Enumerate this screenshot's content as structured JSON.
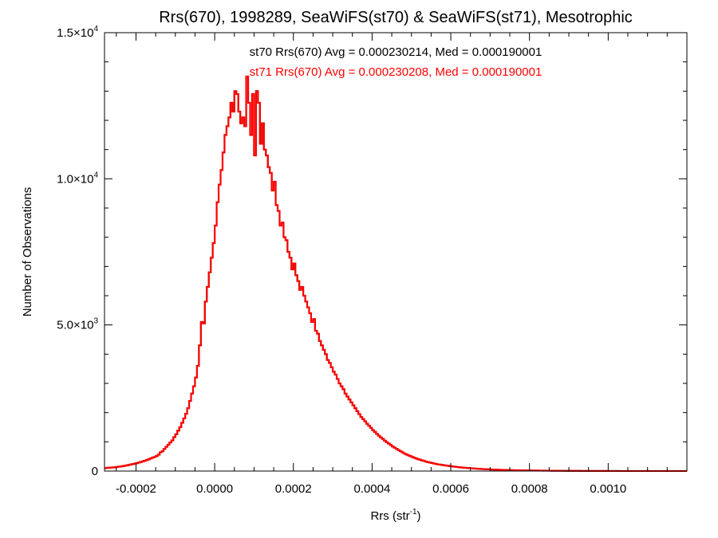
{
  "chart_data": {
    "type": "line",
    "title": "Rrs(670), 1998289, SeaWiFS(st70) & SeaWiFS(st71), Mesotrophic",
    "xlabel": {
      "main": "Rrs (str",
      "sup": "-1",
      "close": ")"
    },
    "ylabel": "Number of Observations",
    "xlim": [
      -0.00028,
      0.0012
    ],
    "ylim": [
      0,
      15000
    ],
    "x_ticks": [
      {
        "value": -0.0002,
        "label": "-0.0002"
      },
      {
        "value": 0.0,
        "label": "0.0000"
      },
      {
        "value": 0.0002,
        "label": "0.0002"
      },
      {
        "value": 0.0004,
        "label": "0.0004"
      },
      {
        "value": 0.0006,
        "label": "0.0006"
      },
      {
        "value": 0.0008,
        "label": "0.0008"
      },
      {
        "value": 0.001,
        "label": "0.0010"
      }
    ],
    "y_ticks": [
      {
        "value": 0,
        "label": "0",
        "exp": ""
      },
      {
        "value": 5000,
        "label": "5.0×10",
        "exp": "3"
      },
      {
        "value": 10000,
        "label": "1.0×10",
        "exp": "4"
      },
      {
        "value": 15000,
        "label": "1.5×10",
        "exp": "4"
      }
    ],
    "annotations": [
      {
        "text": "st70 Rrs(670) Avg = 0.000230214, Med = 0.000190001",
        "color": "#000000"
      },
      {
        "text": "st71 Rrs(670) Avg = 0.000230208, Med = 0.000190001",
        "color": "#ff0000"
      }
    ],
    "bin_width": 5e-06,
    "x_start": -0.00028,
    "series": [
      {
        "name": "st70",
        "color": "#000000",
        "values": [
          100,
          110,
          115,
          120,
          125,
          130,
          140,
          150,
          160,
          170,
          180,
          195,
          210,
          225,
          240,
          255,
          270,
          290,
          310,
          330,
          350,
          375,
          400,
          430,
          460,
          480,
          510,
          560,
          640,
          680,
          760,
          830,
          900,
          980,
          1050,
          1160,
          1260,
          1380,
          1500,
          1650,
          1800,
          1960,
          2150,
          2400,
          2650,
          2900,
          3200,
          3600,
          4300,
          5100,
          5050,
          5800,
          6300,
          6800,
          7300,
          7800,
          8400,
          9200,
          9800,
          10300,
          10900,
          11500,
          11800,
          12100,
          12600,
          12300,
          13000,
          12900,
          12300,
          11900,
          12100,
          11800,
          13500,
          12600,
          11500,
          12900,
          10800,
          13000,
          12600,
          11200,
          11900,
          11000,
          10800,
          10400,
          10200,
          9600,
          9900,
          9100,
          8900,
          8400,
          8500,
          8000,
          7900,
          7500,
          7300,
          6900,
          7100,
          6700,
          6500,
          6200,
          6300,
          6000,
          5800,
          5600,
          5400,
          5100,
          5200,
          4800,
          4700,
          4450,
          4300,
          4150,
          4000,
          3800,
          3700,
          3550,
          3400,
          3300,
          3150,
          3000,
          2900,
          2800,
          2650,
          2550,
          2450,
          2350,
          2250,
          2150,
          2050,
          1950,
          1850,
          1780,
          1700,
          1620,
          1550,
          1480,
          1400,
          1340,
          1270,
          1210,
          1150,
          1100,
          1040,
          990,
          940,
          890,
          840,
          800,
          760,
          720,
          680,
          640,
          600,
          570,
          540,
          510,
          480,
          455,
          430,
          405,
          385,
          365,
          345,
          325,
          305,
          290,
          275,
          260,
          245,
          230,
          220,
          210,
          200,
          190,
          180,
          170,
          160,
          152,
          145,
          138,
          130,
          123,
          117,
          111,
          105,
          99,
          94,
          89,
          84,
          80,
          76,
          72,
          68,
          64,
          61,
          58,
          55,
          52,
          49,
          47,
          45,
          42,
          40,
          38,
          36,
          34,
          32,
          30,
          29,
          28,
          26,
          25,
          24,
          23,
          22,
          21,
          20,
          19,
          18,
          17,
          16,
          15,
          15,
          14,
          13,
          12,
          12,
          11,
          11,
          10,
          10,
          9,
          9,
          8,
          8,
          8,
          7,
          7,
          7,
          6,
          6,
          6,
          5,
          5,
          5,
          5,
          4,
          4,
          4,
          4,
          3,
          3,
          3,
          3,
          3,
          2,
          2,
          2,
          2,
          2,
          2,
          2,
          1,
          1,
          1,
          1,
          1,
          1,
          1,
          1,
          1,
          1,
          1,
          1,
          1,
          1,
          1,
          1,
          1,
          1,
          1,
          1,
          1,
          1,
          1,
          1,
          1,
          1,
          1,
          1,
          1,
          1,
          1,
          1,
          1,
          1,
          1,
          1
        ]
      },
      {
        "name": "st71",
        "color": "#ff0000",
        "values": [
          100,
          110,
          115,
          120,
          125,
          130,
          140,
          150,
          160,
          170,
          180,
          195,
          210,
          225,
          240,
          255,
          270,
          290,
          310,
          330,
          350,
          375,
          400,
          430,
          460,
          480,
          510,
          560,
          640,
          680,
          760,
          830,
          900,
          980,
          1050,
          1160,
          1260,
          1380,
          1500,
          1650,
          1800,
          1960,
          2150,
          2400,
          2650,
          2900,
          3200,
          3600,
          4300,
          5100,
          5050,
          5800,
          6300,
          6800,
          7300,
          7800,
          8400,
          9200,
          9800,
          10300,
          10900,
          11500,
          11800,
          12100,
          12600,
          12300,
          13000,
          12900,
          12300,
          11900,
          12100,
          11800,
          13500,
          12600,
          11500,
          12900,
          10800,
          13000,
          12600,
          11200,
          11900,
          11000,
          10800,
          10400,
          10200,
          9600,
          9900,
          9100,
          8900,
          8400,
          8500,
          8000,
          7900,
          7500,
          7300,
          6900,
          7100,
          6700,
          6500,
          6200,
          6300,
          6000,
          5800,
          5600,
          5400,
          5100,
          5200,
          4800,
          4700,
          4450,
          4300,
          4150,
          4000,
          3800,
          3700,
          3550,
          3400,
          3300,
          3150,
          3000,
          2900,
          2800,
          2650,
          2550,
          2450,
          2350,
          2250,
          2150,
          2050,
          1950,
          1850,
          1780,
          1700,
          1620,
          1550,
          1480,
          1400,
          1340,
          1270,
          1210,
          1150,
          1100,
          1040,
          990,
          940,
          890,
          840,
          800,
          760,
          720,
          680,
          640,
          600,
          570,
          540,
          510,
          480,
          455,
          430,
          405,
          385,
          365,
          345,
          325,
          305,
          290,
          275,
          260,
          245,
          230,
          220,
          210,
          200,
          190,
          180,
          170,
          160,
          152,
          145,
          138,
          130,
          123,
          117,
          111,
          105,
          99,
          94,
          89,
          84,
          80,
          76,
          72,
          68,
          64,
          61,
          58,
          55,
          52,
          49,
          47,
          45,
          42,
          40,
          38,
          36,
          34,
          32,
          30,
          29,
          28,
          26,
          25,
          24,
          23,
          22,
          21,
          20,
          19,
          18,
          17,
          16,
          15,
          15,
          14,
          13,
          12,
          12,
          11,
          11,
          10,
          10,
          9,
          9,
          8,
          8,
          8,
          7,
          7,
          7,
          6,
          6,
          6,
          5,
          5,
          5,
          5,
          4,
          4,
          4,
          4,
          3,
          3,
          3,
          3,
          3,
          2,
          2,
          2,
          2,
          2,
          2,
          2,
          1,
          1,
          1,
          1,
          1,
          1,
          1,
          1,
          1,
          1,
          1,
          1,
          1,
          1,
          1,
          1,
          1,
          1,
          1,
          1,
          1,
          1,
          1,
          1,
          1,
          1,
          1,
          1,
          1,
          1,
          1,
          1,
          1,
          1,
          1,
          1
        ]
      }
    ]
  }
}
